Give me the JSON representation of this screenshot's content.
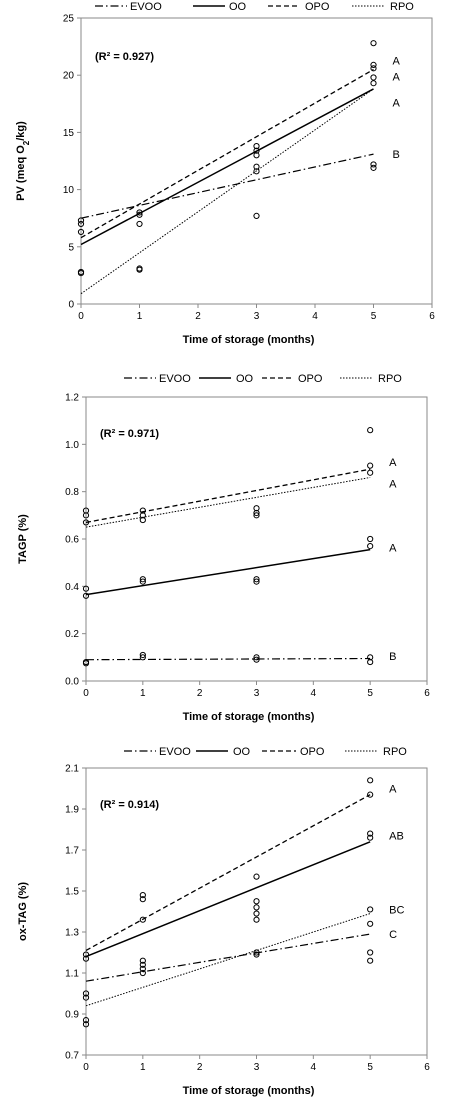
{
  "legend": [
    {
      "name": "EVOO",
      "dash": "dashdot"
    },
    {
      "name": "OO",
      "dash": "solid"
    },
    {
      "name": "OPO",
      "dash": "dashed"
    },
    {
      "name": "RPO",
      "dash": "dotted"
    }
  ],
  "chart_data": [
    {
      "type": "scatter",
      "title": "",
      "xlabel": "Time of storage (months)",
      "ylabel_prefix": "PV (meq O",
      "ylabel_sub": "2",
      "ylabel_suffix": "/kg)",
      "r2_label": "(R² = 0.927)",
      "xlim": [
        0,
        6
      ],
      "ylim": [
        0,
        25
      ],
      "xticks": [
        0,
        1,
        2,
        3,
        4,
        5,
        6
      ],
      "yticks": [
        0,
        5,
        10,
        15,
        20,
        25
      ],
      "ytick_labels": [
        "0",
        "5",
        "10",
        "15",
        "20",
        "25"
      ],
      "points": [
        {
          "x": 0,
          "y": 2.7
        },
        {
          "x": 0,
          "y": 2.8
        },
        {
          "x": 0,
          "y": 6.3
        },
        {
          "x": 0,
          "y": 7.0
        },
        {
          "x": 0,
          "y": 7.3
        },
        {
          "x": 1,
          "y": 3.0
        },
        {
          "x": 1,
          "y": 3.1
        },
        {
          "x": 1,
          "y": 7.0
        },
        {
          "x": 1,
          "y": 7.8
        },
        {
          "x": 1,
          "y": 8.0
        },
        {
          "x": 3,
          "y": 7.7
        },
        {
          "x": 3,
          "y": 11.6
        },
        {
          "x": 3,
          "y": 12.0
        },
        {
          "x": 3,
          "y": 13.0
        },
        {
          "x": 3,
          "y": 13.4
        },
        {
          "x": 3,
          "y": 13.8
        },
        {
          "x": 5,
          "y": 11.9
        },
        {
          "x": 5,
          "y": 12.2
        },
        {
          "x": 5,
          "y": 19.3
        },
        {
          "x": 5,
          "y": 19.8
        },
        {
          "x": 5,
          "y": 20.6
        },
        {
          "x": 5,
          "y": 20.9
        },
        {
          "x": 5,
          "y": 22.8
        }
      ],
      "series": [
        {
          "name": "EVOO",
          "x": [
            0,
            5
          ],
          "y": [
            7.5,
            13.1
          ],
          "sig": "B",
          "sig_y": 13.1
        },
        {
          "name": "OO",
          "x": [
            0,
            5
          ],
          "y": [
            5.2,
            18.8
          ],
          "sig": "A",
          "sig_y": 17.6
        },
        {
          "name": "OPO",
          "x": [
            0,
            5
          ],
          "y": [
            5.8,
            20.5
          ],
          "sig": "A",
          "sig_y": 19.9
        },
        {
          "name": "RPO",
          "x": [
            0,
            5
          ],
          "y": [
            0.9,
            18.8
          ],
          "sig": "A",
          "sig_y": 21.3
        }
      ]
    },
    {
      "type": "scatter",
      "title": "",
      "xlabel": "Time of storage (months)",
      "ylabel_prefix": "TAGP (%)",
      "ylabel_sub": "",
      "ylabel_suffix": "",
      "r2_label": "(R² = 0.971)",
      "xlim": [
        0,
        6
      ],
      "ylim": [
        0,
        1.2
      ],
      "xticks": [
        0,
        1,
        2,
        3,
        4,
        5,
        6
      ],
      "yticks": [
        0,
        0.2,
        0.4,
        0.6,
        0.8,
        1.0,
        1.2
      ],
      "ytick_labels": [
        "0.0",
        "0.2",
        "0.4",
        "0.6",
        "0.8",
        "1.0",
        "1.2"
      ],
      "points": [
        {
          "x": 0,
          "y": 0.075
        },
        {
          "x": 0,
          "y": 0.08
        },
        {
          "x": 0,
          "y": 0.36
        },
        {
          "x": 0,
          "y": 0.39
        },
        {
          "x": 0,
          "y": 0.67
        },
        {
          "x": 0,
          "y": 0.7
        },
        {
          "x": 0,
          "y": 0.72
        },
        {
          "x": 1,
          "y": 0.1
        },
        {
          "x": 1,
          "y": 0.11
        },
        {
          "x": 1,
          "y": 0.42
        },
        {
          "x": 1,
          "y": 0.43
        },
        {
          "x": 1,
          "y": 0.68
        },
        {
          "x": 1,
          "y": 0.7
        },
        {
          "x": 1,
          "y": 0.72
        },
        {
          "x": 3,
          "y": 0.09
        },
        {
          "x": 3,
          "y": 0.1
        },
        {
          "x": 3,
          "y": 0.42
        },
        {
          "x": 3,
          "y": 0.43
        },
        {
          "x": 3,
          "y": 0.7
        },
        {
          "x": 3,
          "y": 0.71
        },
        {
          "x": 3,
          "y": 0.73
        },
        {
          "x": 5,
          "y": 0.08
        },
        {
          "x": 5,
          "y": 0.1
        },
        {
          "x": 5,
          "y": 0.57
        },
        {
          "x": 5,
          "y": 0.6
        },
        {
          "x": 5,
          "y": 0.88
        },
        {
          "x": 5,
          "y": 0.91
        },
        {
          "x": 5,
          "y": 1.06
        }
      ],
      "series": [
        {
          "name": "EVOO",
          "x": [
            0,
            5
          ],
          "y": [
            0.09,
            0.095
          ],
          "sig": "B",
          "sig_y": 0.105
        },
        {
          "name": "OO",
          "x": [
            0,
            5
          ],
          "y": [
            0.365,
            0.555
          ],
          "sig": "A",
          "sig_y": 0.565
        },
        {
          "name": "OPO",
          "x": [
            0,
            5
          ],
          "y": [
            0.67,
            0.895
          ],
          "sig": "A",
          "sig_y": 0.925
        },
        {
          "name": "RPO",
          "x": [
            0,
            5
          ],
          "y": [
            0.65,
            0.86
          ],
          "sig": "A",
          "sig_y": 0.835
        }
      ]
    },
    {
      "type": "scatter",
      "title": "",
      "xlabel": "Time of storage (months)",
      "ylabel_prefix": "ox-TAG (%)",
      "ylabel_sub": "",
      "ylabel_suffix": "",
      "r2_label": "(R² = 0.914)",
      "xlim": [
        0,
        6
      ],
      "ylim": [
        0.7,
        2.1
      ],
      "xticks": [
        0,
        1,
        2,
        3,
        4,
        5,
        6
      ],
      "yticks": [
        0.7,
        0.9,
        1.1,
        1.3,
        1.5,
        1.7,
        1.9,
        2.1
      ],
      "ytick_labels": [
        "0.7",
        "0.9",
        "1.1",
        "1.3",
        "1.5",
        "1.7",
        "1.9",
        "2.1"
      ],
      "points": [
        {
          "x": 0,
          "y": 0.85
        },
        {
          "x": 0,
          "y": 0.87
        },
        {
          "x": 0,
          "y": 0.98
        },
        {
          "x": 0,
          "y": 1.0
        },
        {
          "x": 0,
          "y": 1.17
        },
        {
          "x": 0,
          "y": 1.19
        },
        {
          "x": 1,
          "y": 1.1
        },
        {
          "x": 1,
          "y": 1.12
        },
        {
          "x": 1,
          "y": 1.14
        },
        {
          "x": 1,
          "y": 1.16
        },
        {
          "x": 1,
          "y": 1.36
        },
        {
          "x": 1,
          "y": 1.46
        },
        {
          "x": 1,
          "y": 1.48
        },
        {
          "x": 3,
          "y": 1.19
        },
        {
          "x": 3,
          "y": 1.2
        },
        {
          "x": 3,
          "y": 1.36
        },
        {
          "x": 3,
          "y": 1.39
        },
        {
          "x": 3,
          "y": 1.42
        },
        {
          "x": 3,
          "y": 1.45
        },
        {
          "x": 3,
          "y": 1.57
        },
        {
          "x": 5,
          "y": 1.16
        },
        {
          "x": 5,
          "y": 1.2
        },
        {
          "x": 5,
          "y": 1.34
        },
        {
          "x": 5,
          "y": 1.41
        },
        {
          "x": 5,
          "y": 1.76
        },
        {
          "x": 5,
          "y": 1.78
        },
        {
          "x": 5,
          "y": 1.97
        },
        {
          "x": 5,
          "y": 2.04
        }
      ],
      "series": [
        {
          "name": "EVOO",
          "x": [
            0,
            5
          ],
          "y": [
            1.06,
            1.29
          ],
          "sig": "C",
          "sig_y": 1.29
        },
        {
          "name": "OO",
          "x": [
            0,
            5
          ],
          "y": [
            1.18,
            1.74
          ],
          "sig": "AB",
          "sig_y": 1.77
        },
        {
          "name": "OPO",
          "x": [
            0,
            5
          ],
          "y": [
            1.21,
            1.97
          ],
          "sig": "A",
          "sig_y": 2.0
        },
        {
          "name": "RPO",
          "x": [
            0,
            5
          ],
          "y": [
            0.94,
            1.39
          ],
          "sig": "BC",
          "sig_y": 1.41
        }
      ]
    }
  ]
}
